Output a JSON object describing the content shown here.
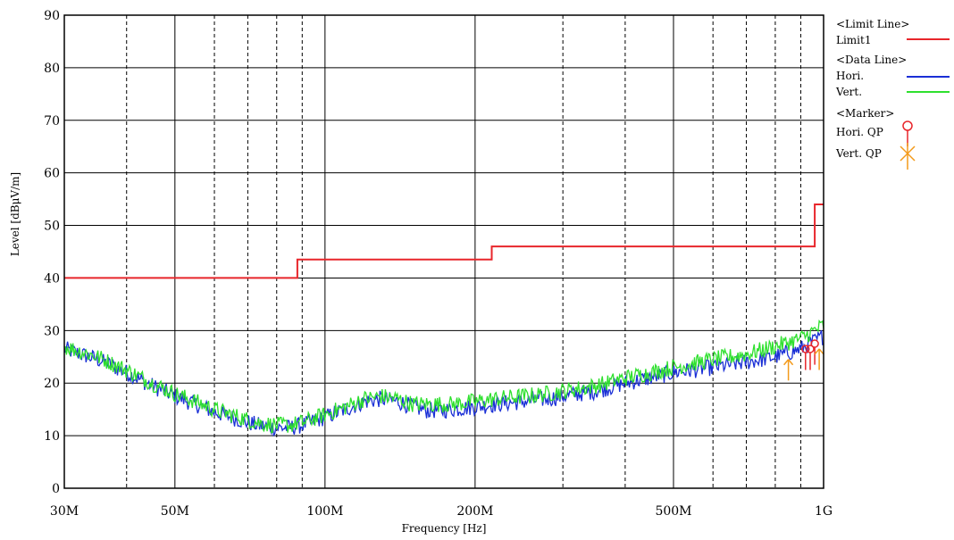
{
  "chart_data": {
    "type": "line",
    "xlabel": "Frequency [Hz]",
    "ylabel": "Level [dBμV/m]",
    "xscale": "log",
    "xlim": [
      30000000,
      1000000000
    ],
    "ylim": [
      0,
      90
    ],
    "grid": true,
    "legend_position": "right",
    "x_ticks": [
      {
        "value": 30000000,
        "label": "30M"
      },
      {
        "value": 50000000,
        "label": "50M"
      },
      {
        "value": 100000000,
        "label": "100M"
      },
      {
        "value": 200000000,
        "label": "200M"
      },
      {
        "value": 500000000,
        "label": "500M"
      },
      {
        "value": 1000000000,
        "label": "1G"
      }
    ],
    "y_ticks": [
      0,
      10,
      20,
      30,
      40,
      50,
      60,
      70,
      80,
      90
    ],
    "legend": {
      "limit_header": "<Limit Line>",
      "data_header": "<Data Line>",
      "marker_header": "<Marker>",
      "limit_label": "Limit1",
      "hori_label": "Hori.",
      "vert_label": "Vert.",
      "hori_marker_label": "Hori.  QP",
      "vert_marker_label": "Vert.  QP"
    },
    "limit_line": {
      "name": "Limit1",
      "color": "#e8262b",
      "x": [
        30000000,
        88000000,
        88000000,
        216000000,
        216000000,
        960000000,
        960000000,
        1000000000
      ],
      "y": [
        40,
        40,
        43.5,
        43.5,
        46,
        46,
        54,
        54
      ]
    },
    "series": [
      {
        "name": "Hori.",
        "color": "#1a2fd6",
        "x": [
          30000000,
          35000000,
          40000000,
          45000000,
          50000000,
          55000000,
          60000000,
          65000000,
          70000000,
          75000000,
          80000000,
          85000000,
          90000000,
          100000000,
          110000000,
          120000000,
          130000000,
          140000000,
          150000000,
          160000000,
          170000000,
          180000000,
          200000000,
          220000000,
          250000000,
          280000000,
          300000000,
          350000000,
          400000000,
          450000000,
          500000000,
          600000000,
          700000000,
          800000000,
          900000000,
          1000000000
        ],
        "values": [
          26.5,
          24.5,
          22,
          19.5,
          17.5,
          16,
          14.5,
          13.5,
          12.5,
          11.8,
          11.5,
          11.5,
          12,
          13.5,
          15,
          16.5,
          17,
          16.5,
          15.5,
          14.8,
          14.8,
          15,
          15.5,
          16,
          16.5,
          17,
          17.5,
          18.5,
          20,
          21,
          22,
          23,
          24,
          25,
          26.5,
          29
        ]
      },
      {
        "name": "Vert.",
        "color": "#2ee02e",
        "x": [
          30000000,
          35000000,
          40000000,
          45000000,
          50000000,
          55000000,
          60000000,
          65000000,
          70000000,
          75000000,
          80000000,
          85000000,
          90000000,
          100000000,
          110000000,
          120000000,
          130000000,
          140000000,
          150000000,
          160000000,
          170000000,
          180000000,
          200000000,
          220000000,
          250000000,
          280000000,
          300000000,
          350000000,
          400000000,
          450000000,
          500000000,
          600000000,
          700000000,
          800000000,
          900000000,
          1000000000
        ],
        "values": [
          27,
          25,
          22.5,
          20,
          18,
          16.5,
          15,
          14,
          13,
          12.3,
          12,
          12,
          12.5,
          14,
          15.5,
          17,
          17.5,
          17,
          16,
          16,
          16,
          16,
          16.5,
          17,
          17.5,
          18,
          18.5,
          19.5,
          21,
          22,
          23,
          24.5,
          25.5,
          27,
          28.5,
          31
        ]
      }
    ],
    "markers": [
      {
        "series": "Hori. QP",
        "x": 920000000,
        "y": 26.5,
        "color": "#e8262b"
      },
      {
        "series": "Hori. QP",
        "x": 940000000,
        "y": 26.5,
        "color": "#e8262b"
      },
      {
        "series": "Hori. QP",
        "x": 960000000,
        "y": 27.5,
        "color": "#e8262b"
      },
      {
        "series": "Vert. QP",
        "x": 850000000,
        "y": 24.5,
        "color": "#f39a1a"
      },
      {
        "series": "Vert. QP",
        "x": 980000000,
        "y": 26.5,
        "color": "#f39a1a"
      }
    ]
  }
}
